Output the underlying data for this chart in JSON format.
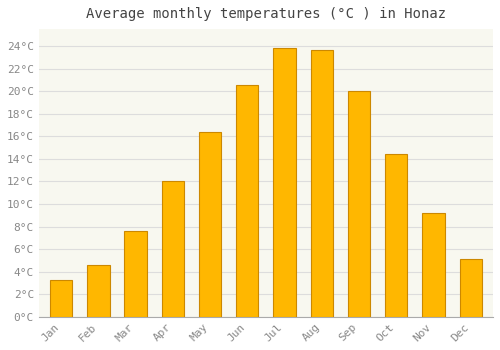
{
  "title": "Average monthly temperatures (°C ) in Honaz",
  "months": [
    "Jan",
    "Feb",
    "Mar",
    "Apr",
    "May",
    "Jun",
    "Jul",
    "Aug",
    "Sep",
    "Oct",
    "Nov",
    "Dec"
  ],
  "values": [
    3.3,
    4.6,
    7.6,
    12.0,
    16.4,
    20.5,
    23.8,
    23.6,
    20.0,
    14.4,
    9.2,
    5.1
  ],
  "bar_color": "#FFAA00",
  "bar_edge_color": "#CC8800",
  "background_color": "#FFFFFF",
  "plot_bg_color": "#F8F8F0",
  "grid_color": "#DDDDDD",
  "ytick_labels": [
    "0°C",
    "2°C",
    "4°C",
    "6°C",
    "8°C",
    "10°C",
    "12°C",
    "14°C",
    "16°C",
    "18°C",
    "20°C",
    "22°C",
    "24°C"
  ],
  "ytick_values": [
    0,
    2,
    4,
    6,
    8,
    10,
    12,
    14,
    16,
    18,
    20,
    22,
    24
  ],
  "ylim": [
    0,
    25.5
  ],
  "title_fontsize": 10,
  "tick_fontsize": 8,
  "font_family": "monospace",
  "bar_width": 0.6
}
